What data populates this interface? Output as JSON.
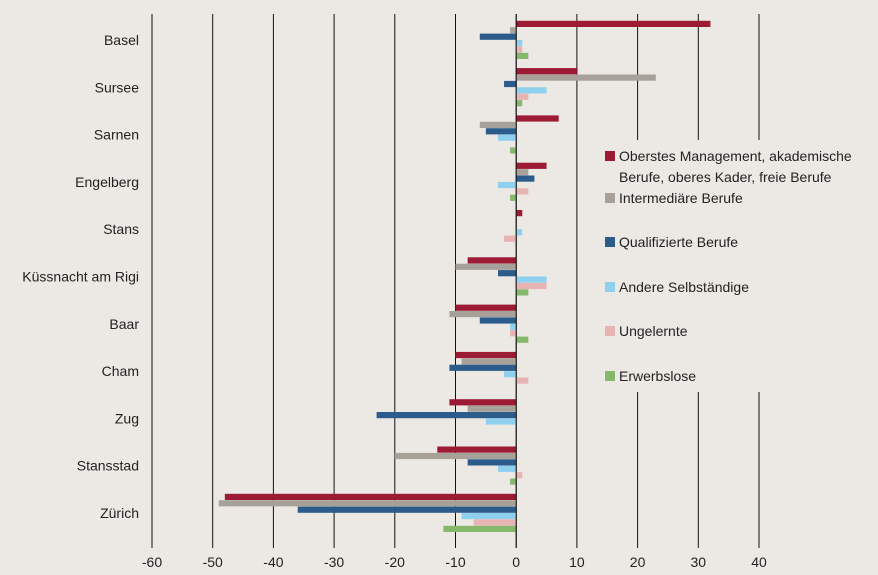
{
  "chart_data": {
    "type": "bar",
    "orientation": "horizontal",
    "categories": [
      "Basel",
      "Sursee",
      "Sarnen",
      "Engelberg",
      "Stans",
      "Küssnacht am Rigi",
      "Baar",
      "Cham",
      "Zug",
      "Stansstad",
      "Zürich"
    ],
    "series": [
      {
        "name": "Oberstes Management, akademische Berufe, oberes Kader, freie Berufe",
        "color": "#9c1a34",
        "values": [
          32,
          10,
          7,
          5,
          1,
          -8,
          -10,
          -10,
          -11,
          -13,
          -48
        ]
      },
      {
        "name": "Intermediäre Berufe",
        "color": "#a8a199",
        "values": [
          -1,
          23,
          -6,
          2,
          0,
          -10,
          -11,
          -9,
          -8,
          -20,
          -49
        ]
      },
      {
        "name": "Qualifizierte Berufe",
        "color": "#2b5c8c",
        "values": [
          -6,
          -2,
          -5,
          3,
          0,
          -3,
          -6,
          -11,
          -23,
          -8,
          -36
        ]
      },
      {
        "name": "Andere Selbständige",
        "color": "#8fd0ee",
        "values": [
          1,
          5,
          -3,
          -3,
          1,
          5,
          -1,
          -2,
          -5,
          -3,
          -9
        ]
      },
      {
        "name": "Ungelernte",
        "color": "#e8b3b3",
        "values": [
          1,
          2,
          0,
          2,
          -2,
          5,
          -1,
          2,
          0,
          1,
          -7
        ]
      },
      {
        "name": "Erwerbslose",
        "color": "#86b86b",
        "values": [
          2,
          1,
          -1,
          -1,
          0,
          2,
          2,
          0,
          0,
          -1,
          -12
        ]
      }
    ],
    "xlim": [
      -60,
      40
    ],
    "xticks": [
      "-60",
      "-50",
      "-40",
      "-30",
      "-20",
      "-10",
      "0",
      "10",
      "20",
      "30",
      "40"
    ],
    "grid": "vertical",
    "legend_position": "right"
  }
}
